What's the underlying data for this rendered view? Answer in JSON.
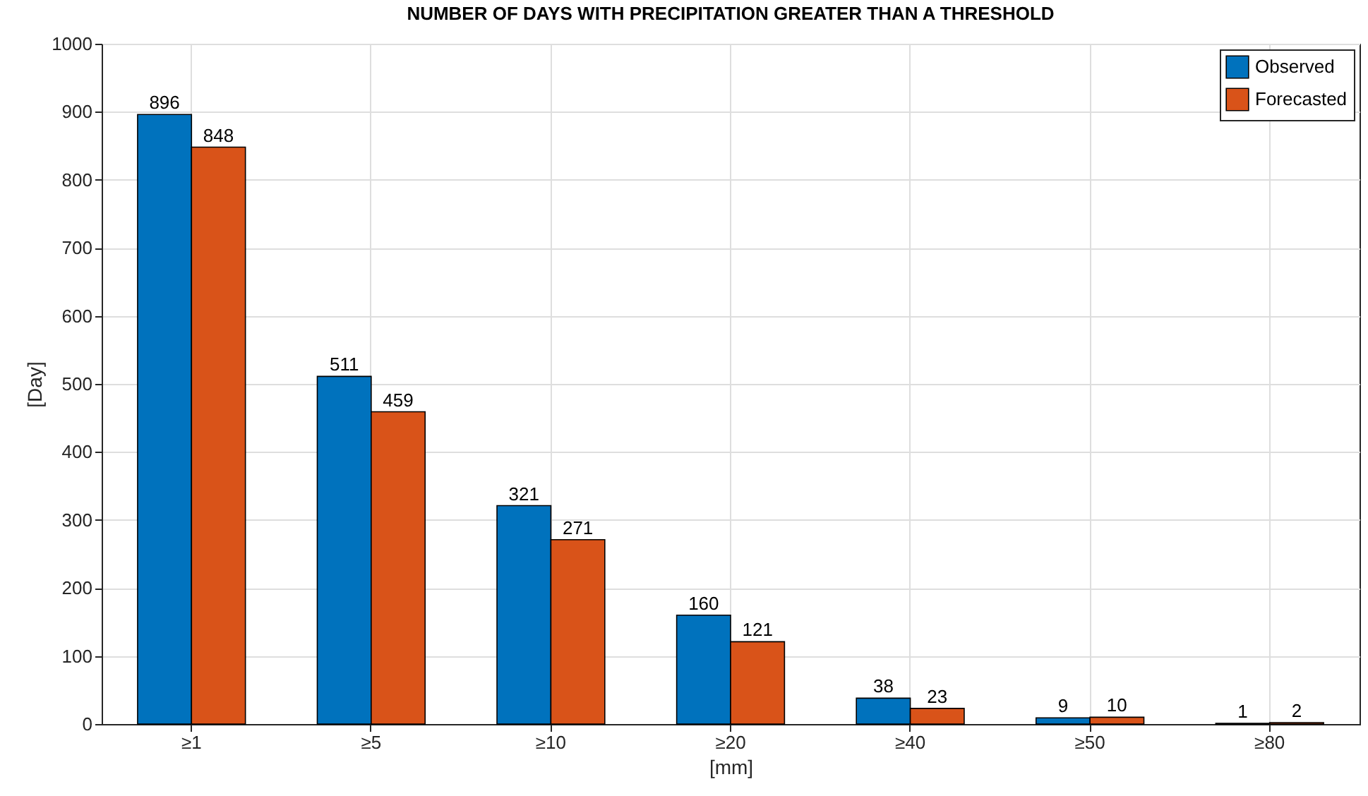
{
  "chart_data": {
    "type": "bar",
    "title": "NUMBER OF DAYS WITH PRECIPITATION GREATER THAN A THRESHOLD",
    "xlabel": "[mm]",
    "ylabel": "[Day]",
    "categories": [
      "≥1",
      "≥5",
      "≥10",
      "≥20",
      "≥40",
      "≥50",
      "≥80"
    ],
    "series": [
      {
        "name": "Observed",
        "color": "#0072bd",
        "values": [
          896,
          511,
          321,
          160,
          38,
          9,
          1
        ]
      },
      {
        "name": "Forecasted",
        "color": "#d95319",
        "values": [
          848,
          459,
          271,
          121,
          23,
          10,
          2
        ]
      }
    ],
    "ylim": [
      0,
      1000
    ],
    "yticks": [
      0,
      100,
      200,
      300,
      400,
      500,
      600,
      700,
      800,
      900,
      1000
    ],
    "grid": true,
    "legend": "top right",
    "data_labels": true
  }
}
